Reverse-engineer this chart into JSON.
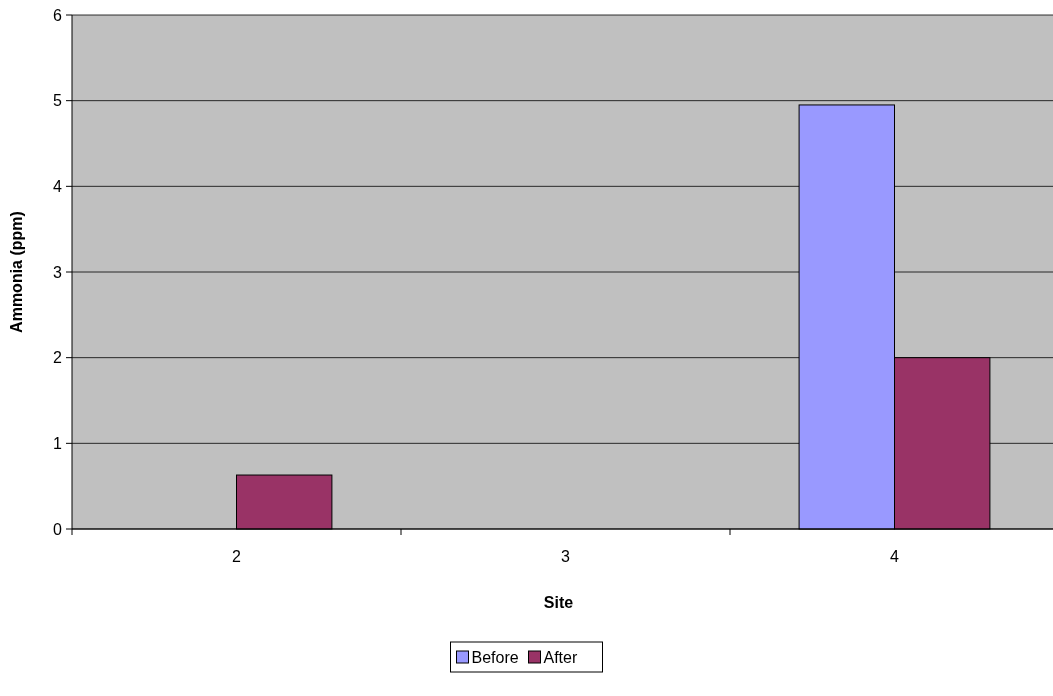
{
  "chart_data": {
    "type": "bar",
    "xlabel": "Site",
    "ylabel": "Ammonia (ppm)",
    "categories": [
      "2",
      "3",
      "4"
    ],
    "series": [
      {
        "name": "Before",
        "color": "#9999ff",
        "values": [
          0,
          0,
          4.95
        ]
      },
      {
        "name": "After",
        "color": "#993366",
        "values": [
          0.63,
          0,
          2.0
        ]
      }
    ],
    "ylim": [
      0,
      6
    ],
    "yticks": [
      0,
      1,
      2,
      3,
      4,
      5,
      6
    ],
    "grid": "y",
    "legend": "bottom"
  }
}
